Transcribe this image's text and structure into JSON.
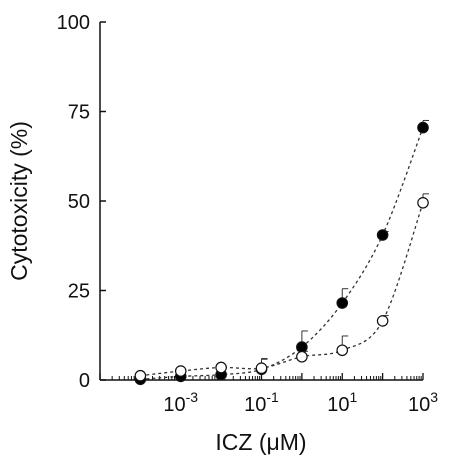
{
  "colors": {
    "axis": "#111111",
    "series_filled": "#000000",
    "series_open_fill": "#ffffff"
  },
  "chart_data": {
    "type": "scatter",
    "xlabel": "ICZ (μM)",
    "ylabel": "Cytotoxicity (%)",
    "x_scale": "log",
    "xlim": [
      1e-05,
      1000
    ],
    "ylim": [
      0,
      100
    ],
    "x_ticks": [
      {
        "value": 0.001,
        "base": "10",
        "exp": "-3"
      },
      {
        "value": 0.1,
        "base": "10",
        "exp": "-1"
      },
      {
        "value": 10,
        "base": "10",
        "exp": "1"
      },
      {
        "value": 1000,
        "base": "10",
        "exp": "3"
      }
    ],
    "y_ticks": [
      "0",
      "25",
      "50",
      "75",
      "100"
    ],
    "grid": false,
    "legend": "none",
    "series": [
      {
        "marker": "filled-circle",
        "x": [
          0.0001,
          0.001,
          0.01,
          0.1,
          1,
          10,
          100,
          1000
        ],
        "y": [
          0.2,
          1.0,
          1.5,
          3.0,
          9.2,
          21.5,
          40.5,
          70.5
        ],
        "error": [
          0,
          0,
          0,
          3.0,
          4.5,
          4.0,
          1.0,
          2.0
        ]
      },
      {
        "marker": "open-circle",
        "x": [
          0.0001,
          0.001,
          0.01,
          0.1,
          1,
          10,
          100,
          1000
        ],
        "y": [
          1.2,
          2.5,
          3.5,
          3.3,
          6.5,
          8.3,
          16.5,
          49.5
        ],
        "error": [
          0,
          0,
          0,
          2.5,
          1.5,
          4.0,
          1.5,
          2.5
        ]
      }
    ]
  }
}
